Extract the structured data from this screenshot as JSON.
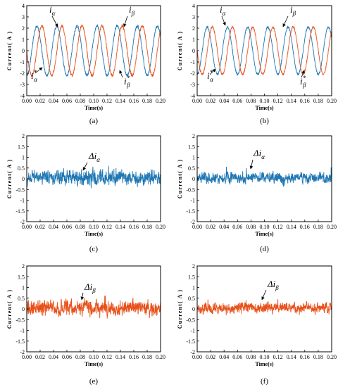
{
  "figure": {
    "colors": {
      "alpha": "#1F77B4",
      "beta": "#E8501A"
    },
    "panels": [
      {
        "label": "(a)",
        "xlabel": "Time(s)",
        "ylabel": "Current( A )",
        "annotations": [
          {
            "text": "iα"
          },
          {
            "text": "iβ"
          },
          {
            "text": "iα*"
          },
          {
            "text": "iβ*"
          }
        ]
      },
      {
        "label": "(b)",
        "xlabel": "Time(s)",
        "ylabel": "Current( A )",
        "annotations": [
          {
            "text": "iα"
          },
          {
            "text": "iβ"
          },
          {
            "text": "iα*"
          },
          {
            "text": "iβ*"
          }
        ]
      },
      {
        "label": "(c)",
        "xlabel": "Time(s)",
        "ylabel": "Current( A )",
        "annotations": [
          {
            "text": "Δiα"
          }
        ]
      },
      {
        "label": "(d)",
        "xlabel": "Time(s)",
        "ylabel": "Current( A )",
        "annotations": [
          {
            "text": "Δiα"
          }
        ]
      },
      {
        "label": "(e)",
        "xlabel": "Time(s)",
        "ylabel": "Current( A )",
        "annotations": [
          {
            "text": "Δiβ"
          }
        ]
      },
      {
        "label": "(f)",
        "xlabel": "Time(s)",
        "ylabel": "Current( A )",
        "annotations": [
          {
            "text": "Δiβ"
          }
        ]
      }
    ]
  },
  "chart_data": [
    {
      "type": "line",
      "title": "",
      "xlabel": "Time(s)",
      "ylabel": "Current( A )",
      "xlim": [
        0,
        0.2
      ],
      "ylim": [
        -4,
        4
      ],
      "xticks": [
        "0.00",
        "0.02",
        "0.04",
        "0.06",
        "0.08",
        "0.10",
        "0.12",
        "0.14",
        "0.16",
        "0.18",
        "0.20"
      ],
      "yticks": [
        "-4",
        "-3",
        "-2",
        "-1",
        "0",
        "1",
        "2",
        "3",
        "4"
      ],
      "grid": false,
      "series": [
        {
          "color": "#1F77B4",
          "signal": "sine",
          "amplitude": 2.2,
          "frequency_hz": 33.3,
          "phase_deg": -90,
          "noise": 0.12
        },
        {
          "color": "#E8501A",
          "signal": "sine",
          "amplitude": 2.2,
          "frequency_hz": 33.3,
          "phase_deg": 180,
          "noise": 0.12
        }
      ]
    },
    {
      "type": "line",
      "title": "",
      "xlabel": "Time(s)",
      "ylabel": "Current( A )",
      "xlim": [
        0,
        0.2
      ],
      "ylim": [
        -4,
        4
      ],
      "xticks": [
        "0.00",
        "0.02",
        "0.04",
        "0.06",
        "0.08",
        "0.10",
        "0.12",
        "0.14",
        "0.16",
        "0.18",
        "0.20"
      ],
      "yticks": [
        "-4",
        "-3",
        "-2",
        "-1",
        "0",
        "1",
        "2",
        "3",
        "4"
      ],
      "grid": false,
      "series": [
        {
          "color": "#1F77B4",
          "signal": "sine",
          "amplitude": 2.1,
          "frequency_hz": 33.3,
          "phase_deg": -90,
          "noise": 0.09
        },
        {
          "color": "#E8501A",
          "signal": "sine",
          "amplitude": 2.1,
          "frequency_hz": 33.3,
          "phase_deg": 180,
          "noise": 0.09
        }
      ]
    },
    {
      "type": "line",
      "title": "",
      "xlabel": "Time(s)",
      "ylabel": "Current( A )",
      "xlim": [
        0,
        0.2
      ],
      "ylim": [
        -2,
        2
      ],
      "xticks": [
        "0.00",
        "0.02",
        "0.04",
        "0.06",
        "0.08",
        "0.10",
        "0.12",
        "0.14",
        "0.16",
        "0.18",
        "0.20"
      ],
      "yticks": [
        "-2",
        "-1.5",
        "-1",
        "-0.5",
        "0",
        "0.5",
        "1",
        "1.5",
        "2"
      ],
      "grid": false,
      "series": [
        {
          "color": "#1F77B4",
          "signal": "noise",
          "mean": 0.05,
          "spread": 0.4,
          "seed": 11
        }
      ]
    },
    {
      "type": "line",
      "title": "",
      "xlabel": "Time(s)",
      "ylabel": "Current( A )",
      "xlim": [
        0,
        0.2
      ],
      "ylim": [
        -2,
        2
      ],
      "xticks": [
        "0.00",
        "0.02",
        "0.04",
        "0.06",
        "0.08",
        "0.10",
        "0.12",
        "0.14",
        "0.16",
        "0.18",
        "0.20"
      ],
      "yticks": [
        "-2",
        "-1.5",
        "-1",
        "-0.5",
        "0",
        "0.5",
        "1",
        "1.5",
        "2"
      ],
      "grid": false,
      "series": [
        {
          "color": "#1F77B4",
          "signal": "noise",
          "mean": 0.05,
          "spread": 0.28,
          "seed": 23
        }
      ]
    },
    {
      "type": "line",
      "title": "",
      "xlabel": "Time(s)",
      "ylabel": "Current( A )",
      "xlim": [
        0,
        0.2
      ],
      "ylim": [
        -2,
        2
      ],
      "xticks": [
        "0.00",
        "0.02",
        "0.04",
        "0.06",
        "0.08",
        "0.10",
        "0.12",
        "0.14",
        "0.16",
        "0.18",
        "0.20"
      ],
      "yticks": [
        "-2",
        "-1.5",
        "-1",
        "-0.5",
        "0",
        "0.5",
        "1",
        "1.5",
        "2"
      ],
      "grid": false,
      "series": [
        {
          "color": "#E8501A",
          "signal": "noise",
          "mean": 0.05,
          "spread": 0.4,
          "seed": 37
        }
      ]
    },
    {
      "type": "line",
      "title": "",
      "xlabel": "Time(s)",
      "ylabel": "Current( A )",
      "xlim": [
        0,
        0.2
      ],
      "ylim": [
        -2,
        2
      ],
      "xticks": [
        "0.00",
        "0.02",
        "0.04",
        "0.06",
        "0.08",
        "0.10",
        "0.12",
        "0.14",
        "0.16",
        "0.18",
        "0.20"
      ],
      "yticks": [
        "-2",
        "-1.5",
        "-1",
        "-0.5",
        "0",
        "0.5",
        "1",
        "1.5",
        "2"
      ],
      "grid": false,
      "series": [
        {
          "color": "#E8501A",
          "signal": "noise",
          "mean": 0.05,
          "spread": 0.28,
          "seed": 51
        }
      ]
    }
  ]
}
